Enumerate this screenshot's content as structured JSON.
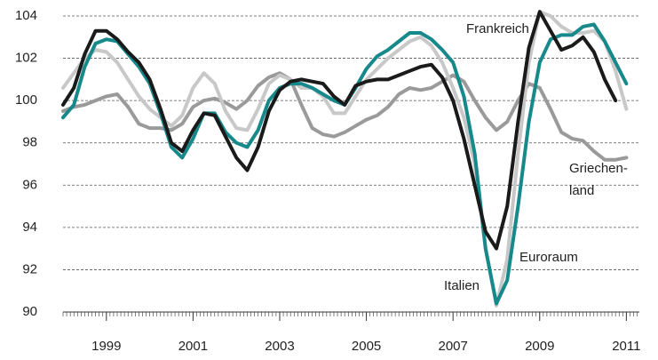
{
  "chart_data": {
    "type": "line",
    "x": [
      1998,
      1998.25,
      1998.5,
      1998.75,
      1999,
      1999.25,
      1999.5,
      1999.75,
      2000,
      2000.25,
      2000.5,
      2000.75,
      2001,
      2001.25,
      2001.5,
      2001.75,
      2002,
      2002.25,
      2002.5,
      2002.75,
      2003,
      2003.25,
      2003.5,
      2003.75,
      2004,
      2004.25,
      2004.5,
      2004.75,
      2005,
      2005.25,
      2005.5,
      2005.75,
      2006,
      2006.25,
      2006.5,
      2006.75,
      2007,
      2007.25,
      2007.5,
      2007.75,
      2008,
      2008.25,
      2008.5,
      2008.75,
      2009,
      2009.25,
      2009.5,
      2009.75,
      2010,
      2010.25,
      2010.5,
      2010.75,
      2011
    ],
    "series": [
      {
        "name": "Griechen- land",
        "color": "#9a9a9a",
        "values": [
          99.5,
          99.7,
          99.8,
          100.0,
          100.2,
          100.3,
          99.7,
          98.9,
          98.7,
          98.7,
          98.6,
          98.9,
          99.7,
          100.0,
          100.1,
          99.9,
          99.6,
          100.0,
          100.7,
          101.1,
          101.3,
          101.0,
          99.8,
          98.7,
          98.4,
          98.3,
          98.5,
          98.8,
          99.1,
          99.3,
          99.7,
          100.3,
          100.6,
          100.5,
          100.6,
          100.9,
          101.2,
          100.9,
          100.0,
          99.2,
          98.6,
          99.0,
          100.0,
          100.8,
          100.6,
          99.6,
          98.5,
          98.2,
          98.1,
          97.6,
          97.2,
          97.2,
          97.3
        ]
      },
      {
        "name": "Italien",
        "color": "#c8c8c8",
        "values": [
          100.6,
          101.3,
          102.0,
          102.4,
          102.3,
          101.8,
          101.0,
          100.2,
          99.6,
          99.2,
          98.8,
          99.3,
          100.6,
          101.3,
          100.8,
          99.5,
          98.7,
          98.6,
          99.6,
          100.8,
          101.2,
          101.0,
          100.6,
          100.6,
          100.2,
          99.4,
          99.4,
          100.2,
          101.0,
          101.5,
          102.0,
          102.4,
          102.8,
          103.0,
          102.6,
          101.8,
          100.6,
          99.2,
          97.0,
          93.0,
          90.3,
          92.5,
          97.5,
          101.8,
          104.2,
          104.0,
          103.5,
          103.2,
          103.2,
          103.3,
          102.8,
          101.4,
          99.6
        ]
      },
      {
        "name": "Euroraum",
        "color": "#17898b",
        "values": [
          99.2,
          99.8,
          101.6,
          102.7,
          102.9,
          102.8,
          102.2,
          101.6,
          100.8,
          99.4,
          97.8,
          97.3,
          98.2,
          99.4,
          99.4,
          98.5,
          98.0,
          97.8,
          98.6,
          100.0,
          100.6,
          100.8,
          100.8,
          100.6,
          100.3,
          100.0,
          99.8,
          100.6,
          101.5,
          102.1,
          102.4,
          102.8,
          103.2,
          103.2,
          102.9,
          102.4,
          101.8,
          100.2,
          97.5,
          93.0,
          90.4,
          91.5,
          95.0,
          99.0,
          101.8,
          102.9,
          103.1,
          103.1,
          103.5,
          103.6,
          102.8,
          101.8,
          100.8
        ]
      },
      {
        "name": "Frankreich",
        "color": "#1a1a1a",
        "values": [
          99.8,
          100.6,
          102.2,
          103.3,
          103.3,
          102.9,
          102.3,
          101.8,
          101.0,
          99.6,
          98.0,
          97.6,
          98.6,
          99.4,
          99.3,
          98.3,
          97.3,
          96.7,
          97.8,
          99.5,
          100.5,
          100.9,
          101.0,
          100.9,
          100.8,
          100.2,
          99.8,
          100.7,
          100.9,
          101.0,
          101.0,
          101.2,
          101.4,
          101.6,
          101.7,
          101.1,
          100.0,
          98.2,
          96.0,
          93.8,
          93.0,
          95.0,
          99.0,
          102.5,
          104.2,
          103.3,
          102.4,
          102.6,
          103.0,
          102.3,
          101.0,
          100.0,
          null
        ]
      }
    ],
    "xlim": [
      1998,
      2011.3
    ],
    "xticks": [
      1999,
      2001,
      2003,
      2005,
      2007,
      2009,
      2011
    ],
    "ylim": [
      90,
      104
    ],
    "yticks": [
      90,
      92,
      94,
      96,
      98,
      100,
      102,
      104
    ],
    "grid": true
  }
}
